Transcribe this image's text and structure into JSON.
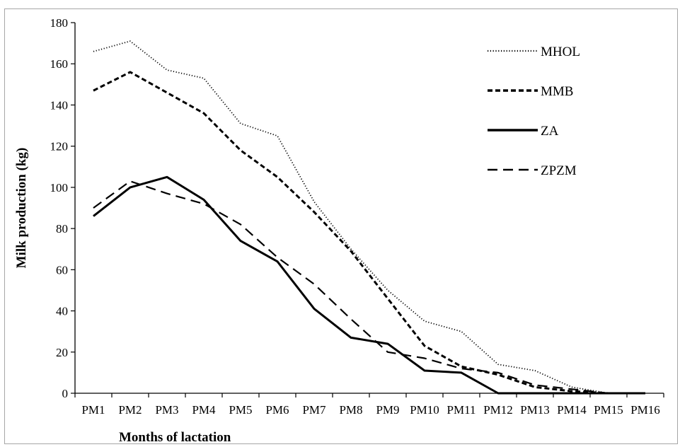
{
  "chart_data": {
    "type": "line",
    "title": "",
    "xlabel": "Months of lactation",
    "ylabel": "Milk production (kg)",
    "ylim": [
      0,
      180
    ],
    "yticks": [
      "0",
      "20",
      "40",
      "60",
      "80",
      "100",
      "120",
      "140",
      "160",
      "180"
    ],
    "grid": false,
    "legend_position": "top-right",
    "categories": [
      "PM1",
      "PM2",
      "PM3",
      "PM4",
      "PM5",
      "PM6",
      "PM7",
      "PM8",
      "PM9",
      "PM10",
      "PM11",
      "PM12",
      "PM13",
      "PM14",
      "PM15",
      "PM16"
    ],
    "series": [
      {
        "name": "MHOL",
        "style": "dotted",
        "color": "#000000",
        "values": [
          166,
          171,
          157,
          153,
          131,
          125,
          93,
          70,
          50,
          35,
          30,
          14,
          11,
          3,
          0,
          0
        ]
      },
      {
        "name": "MMB",
        "style": "dashed",
        "color": "#000000",
        "values": [
          147,
          156,
          146,
          136,
          118,
          105,
          88,
          69,
          46,
          23,
          13,
          9,
          3,
          1,
          0,
          0
        ]
      },
      {
        "name": "ZA",
        "style": "solid",
        "color": "#000000",
        "values": [
          86,
          100,
          105,
          94,
          74,
          64,
          41,
          27,
          24,
          11,
          10,
          0,
          0,
          0,
          0,
          0
        ]
      },
      {
        "name": "ZPZM",
        "style": "longdash",
        "color": "#000000",
        "values": [
          90,
          103,
          97,
          92,
          82,
          66,
          53,
          36,
          20,
          17,
          12,
          10,
          4,
          2,
          0,
          0
        ]
      }
    ]
  }
}
